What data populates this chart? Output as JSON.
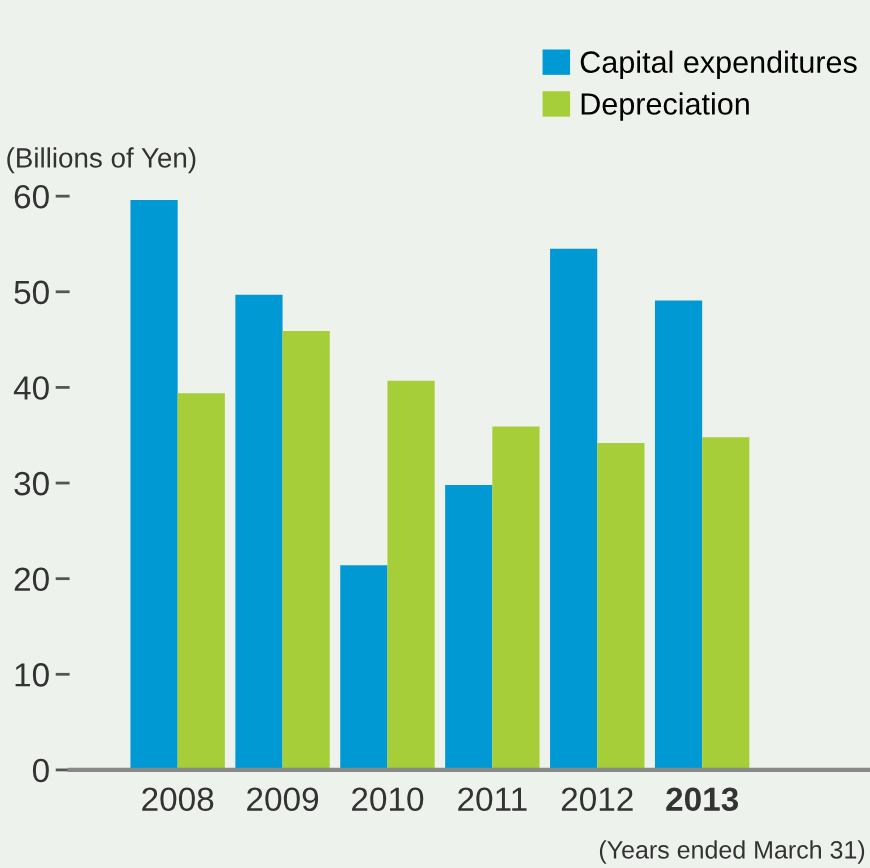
{
  "chart_data": {
    "type": "bar",
    "categories": [
      "2008",
      "2009",
      "2010",
      "2011",
      "2012",
      "2013"
    ],
    "series": [
      {
        "name": "Capital expenditures",
        "color": "#0099d4",
        "values": [
          59.6,
          49.7,
          21.4,
          29.8,
          54.5,
          49.1
        ]
      },
      {
        "name": "Depreciation",
        "color": "#a6ce39",
        "values": [
          39.4,
          45.9,
          40.7,
          35.9,
          34.2,
          34.8
        ]
      }
    ],
    "ylabel": "(Billions of Yen)",
    "ylim": [
      0,
      60
    ],
    "yticks": [
      0,
      10,
      20,
      30,
      40,
      50,
      60
    ],
    "annotations": [
      "(Years ended March 31)"
    ],
    "grid": false,
    "legend": "top right"
  }
}
